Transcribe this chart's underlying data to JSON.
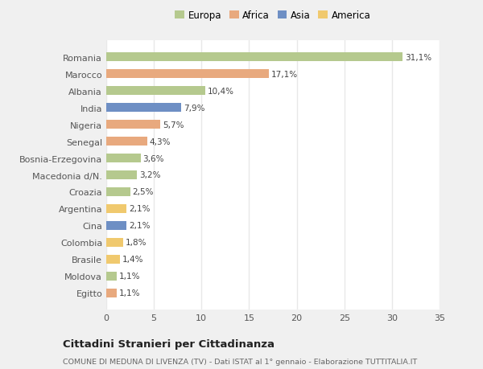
{
  "countries": [
    "Romania",
    "Marocco",
    "Albania",
    "India",
    "Nigeria",
    "Senegal",
    "Bosnia-Erzegovina",
    "Macedonia d/N.",
    "Croazia",
    "Argentina",
    "Cina",
    "Colombia",
    "Brasile",
    "Moldova",
    "Egitto"
  ],
  "values": [
    31.1,
    17.1,
    10.4,
    7.9,
    5.7,
    4.3,
    3.6,
    3.2,
    2.5,
    2.1,
    2.1,
    1.8,
    1.4,
    1.1,
    1.1
  ],
  "labels": [
    "31,1%",
    "17,1%",
    "10,4%",
    "7,9%",
    "5,7%",
    "4,3%",
    "3,6%",
    "3,2%",
    "2,5%",
    "2,1%",
    "2,1%",
    "1,8%",
    "1,4%",
    "1,1%",
    "1,1%"
  ],
  "continents": [
    "Europa",
    "Africa",
    "Europa",
    "Asia",
    "Africa",
    "Africa",
    "Europa",
    "Europa",
    "Europa",
    "America",
    "Asia",
    "America",
    "America",
    "Europa",
    "Africa"
  ],
  "continent_colors": {
    "Europa": "#b5c98e",
    "Africa": "#e8a97e",
    "Asia": "#6e8fc4",
    "America": "#f0c96e"
  },
  "legend_order": [
    "Europa",
    "Africa",
    "Asia",
    "America"
  ],
  "bg_color": "#f0f0f0",
  "plot_bg_color": "#ffffff",
  "grid_color": "#e8e8e8",
  "title": "Cittadini Stranieri per Cittadinanza",
  "subtitle": "COMUNE DI MEDUNA DI LIVENZA (TV) - Dati ISTAT al 1° gennaio - Elaborazione TUTTITALIA.IT",
  "xlim": [
    0,
    35
  ],
  "xticks": [
    0,
    5,
    10,
    15,
    20,
    25,
    30,
    35
  ],
  "bar_height": 0.55,
  "label_fontsize": 7.5,
  "ytick_fontsize": 8,
  "xtick_fontsize": 8,
  "legend_fontsize": 8.5,
  "title_fontsize": 9.5,
  "subtitle_fontsize": 6.8
}
